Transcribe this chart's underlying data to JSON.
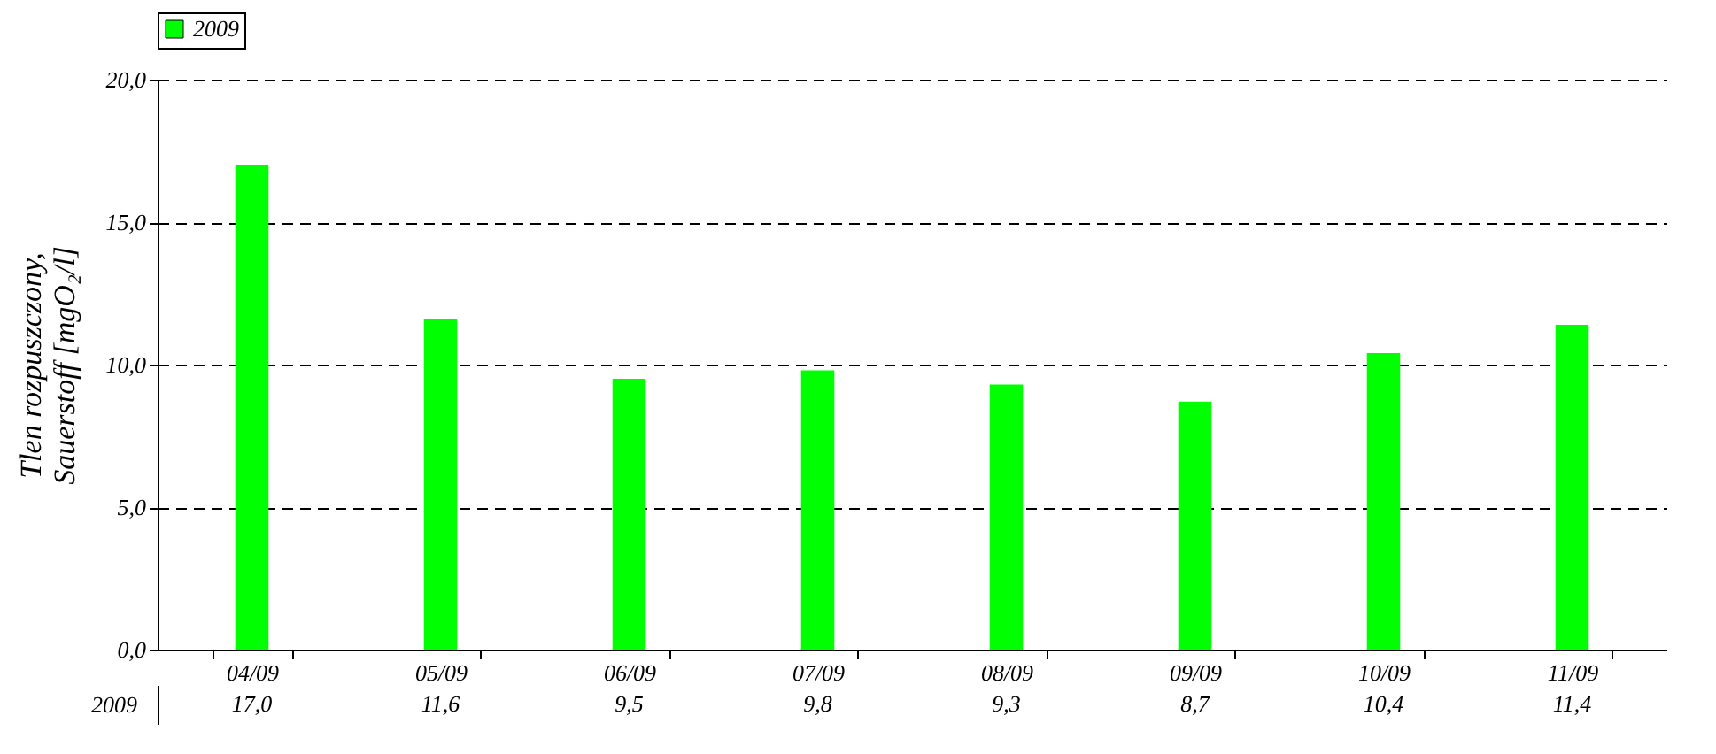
{
  "chart_data": {
    "type": "bar",
    "categories": [
      "04/09",
      "05/09",
      "06/09",
      "07/09",
      "08/09",
      "09/09",
      "10/09",
      "11/09"
    ],
    "series": [
      {
        "name": "2009",
        "color": "#00ff00",
        "values": [
          17.0,
          11.6,
          9.5,
          9.8,
          9.3,
          8.7,
          10.4,
          11.4
        ],
        "value_labels": [
          "17,0",
          "11,6",
          "9,5",
          "9,8",
          "9,3",
          "8,7",
          "10,4",
          "11,4"
        ]
      }
    ],
    "ylabel": "Tlen rozpuszczony, Sauerstoff [mgO₂/l]",
    "ylim": [
      0,
      20
    ],
    "yticks": [
      {
        "value": 0,
        "label": "0,0"
      },
      {
        "value": 5,
        "label": "5,0"
      },
      {
        "value": 10,
        "label": "10,0"
      },
      {
        "value": 15,
        "label": "15,0"
      },
      {
        "value": 20,
        "label": "20,0"
      }
    ],
    "grid": "y",
    "legend": "top"
  }
}
